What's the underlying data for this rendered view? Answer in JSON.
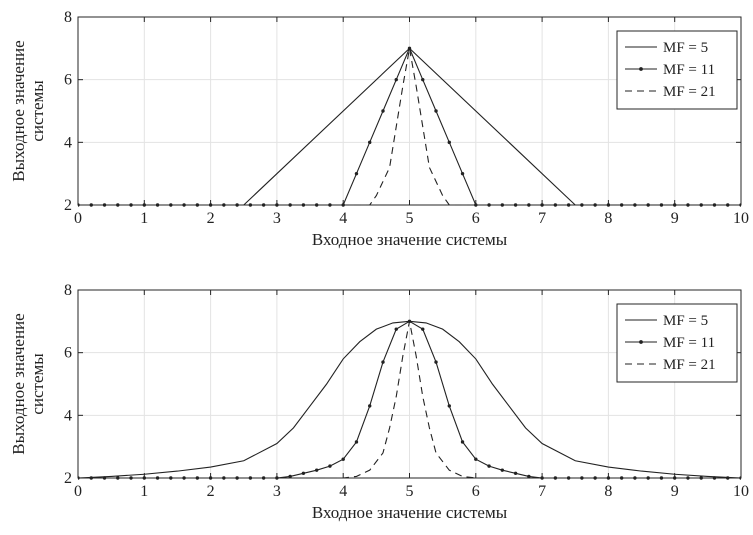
{
  "chart_data": [
    {
      "type": "line",
      "xlabel": "Входное значение системы",
      "ylabel": [
        "Выходное значение",
        "системы"
      ],
      "xlim": [
        0,
        10
      ],
      "ylim": [
        2,
        8
      ],
      "xticks": [
        0,
        1,
        2,
        3,
        4,
        5,
        6,
        7,
        8,
        9,
        10
      ],
      "yticks": [
        2,
        4,
        6,
        8
      ],
      "grid": true,
      "legend_position": "top-right",
      "series": [
        {
          "name": "MF = 5",
          "style": "solid",
          "marker": "none",
          "x": [
            0,
            2.5,
            2.6,
            5,
            7.4,
            7.5,
            10
          ],
          "y": [
            2,
            2,
            2.2,
            7,
            2.2,
            2,
            2
          ]
        },
        {
          "name": "MF = 11",
          "style": "solid",
          "marker": "dot",
          "x": [
            0,
            0.2,
            0.4,
            0.6,
            0.8,
            1.0,
            1.2,
            1.4,
            1.6,
            1.8,
            2.0,
            2.2,
            2.4,
            2.6,
            2.8,
            3.0,
            3.2,
            3.4,
            3.6,
            3.8,
            4.0,
            4.2,
            4.4,
            4.6,
            4.8,
            5.0,
            5.2,
            5.4,
            5.6,
            5.8,
            6.0,
            6.2,
            6.4,
            6.6,
            6.8,
            7.0,
            7.2,
            7.4,
            7.6,
            7.8,
            8.0,
            8.2,
            8.4,
            8.6,
            8.8,
            9.0,
            9.2,
            9.4,
            9.6,
            9.8,
            10.0
          ],
          "y": [
            2,
            2,
            2,
            2,
            2,
            2,
            2,
            2,
            2,
            2,
            2,
            2,
            2,
            2,
            2,
            2,
            2,
            2,
            2,
            2,
            2,
            3,
            4,
            5,
            6,
            7,
            6,
            5,
            4,
            3,
            2,
            2,
            2,
            2,
            2,
            2,
            2,
            2,
            2,
            2,
            2,
            2,
            2,
            2,
            2,
            2,
            2,
            2,
            2,
            2,
            2
          ]
        },
        {
          "name": "MF = 21",
          "style": "dashed",
          "marker": "none",
          "x": [
            0,
            4.4,
            4.5,
            4.7,
            4.9,
            5.0,
            5.1,
            5.3,
            5.5,
            5.6,
            10
          ],
          "y": [
            2,
            2,
            2.3,
            3.2,
            5.8,
            7,
            5.8,
            3.2,
            2.3,
            2,
            2
          ]
        }
      ]
    },
    {
      "type": "line",
      "xlabel": "Входное значение системы",
      "ylabel": [
        "Выходное значение",
        "системы"
      ],
      "xlim": [
        0,
        10
      ],
      "ylim": [
        2,
        8
      ],
      "xticks": [
        0,
        1,
        2,
        3,
        4,
        5,
        6,
        7,
        8,
        9,
        10
      ],
      "yticks": [
        2,
        4,
        6,
        8
      ],
      "grid": true,
      "legend_position": "top-right",
      "series": [
        {
          "name": "MF = 5",
          "style": "solid",
          "marker": "none",
          "x": [
            0,
            0.5,
            1.0,
            1.5,
            2.0,
            2.5,
            3.0,
            3.25,
            3.5,
            3.75,
            4.0,
            4.25,
            4.5,
            4.75,
            5.0,
            5.25,
            5.5,
            5.75,
            6.0,
            6.25,
            6.5,
            6.75,
            7.0,
            7.5,
            8.0,
            8.5,
            9.0,
            9.5,
            10
          ],
          "y": [
            2.0,
            2.05,
            2.12,
            2.22,
            2.35,
            2.55,
            3.1,
            3.6,
            4.3,
            5.0,
            5.8,
            6.35,
            6.75,
            6.95,
            7.0,
            6.95,
            6.75,
            6.35,
            5.8,
            5.0,
            4.3,
            3.6,
            3.1,
            2.55,
            2.35,
            2.22,
            2.12,
            2.05,
            2.0
          ]
        },
        {
          "name": "MF = 11",
          "style": "solid",
          "marker": "dot",
          "x": [
            0,
            0.2,
            0.4,
            0.6,
            0.8,
            1.0,
            1.2,
            1.4,
            1.6,
            1.8,
            2.0,
            2.2,
            2.4,
            2.6,
            2.8,
            3.0,
            3.2,
            3.4,
            3.6,
            3.8,
            4.0,
            4.2,
            4.4,
            4.6,
            4.8,
            5.0,
            5.2,
            5.4,
            5.6,
            5.8,
            6.0,
            6.2,
            6.4,
            6.6,
            6.8,
            7.0,
            7.2,
            7.4,
            7.6,
            7.8,
            8.0,
            8.2,
            8.4,
            8.6,
            8.8,
            9.0,
            9.2,
            9.4,
            9.6,
            9.8,
            10.0
          ],
          "y": [
            2,
            2,
            2,
            2,
            2,
            2,
            2,
            2,
            2,
            2,
            2,
            2,
            2,
            2,
            2,
            2.0,
            2.05,
            2.15,
            2.25,
            2.38,
            2.6,
            3.15,
            4.3,
            5.7,
            6.75,
            7.0,
            6.75,
            5.7,
            4.3,
            3.15,
            2.6,
            2.38,
            2.25,
            2.15,
            2.05,
            2.0,
            2,
            2,
            2,
            2,
            2,
            2,
            2,
            2,
            2,
            2,
            2,
            2,
            2,
            2,
            2
          ]
        },
        {
          "name": "MF = 21",
          "style": "dashed",
          "marker": "none",
          "x": [
            0,
            4.0,
            4.2,
            4.4,
            4.6,
            4.7,
            4.8,
            4.9,
            5.0,
            5.1,
            5.2,
            5.3,
            5.4,
            5.6,
            5.8,
            6.0,
            10
          ],
          "y": [
            2,
            2,
            2.05,
            2.25,
            2.8,
            3.6,
            4.6,
            5.9,
            7,
            5.9,
            4.6,
            3.6,
            2.8,
            2.25,
            2.05,
            2,
            2
          ]
        }
      ]
    }
  ]
}
